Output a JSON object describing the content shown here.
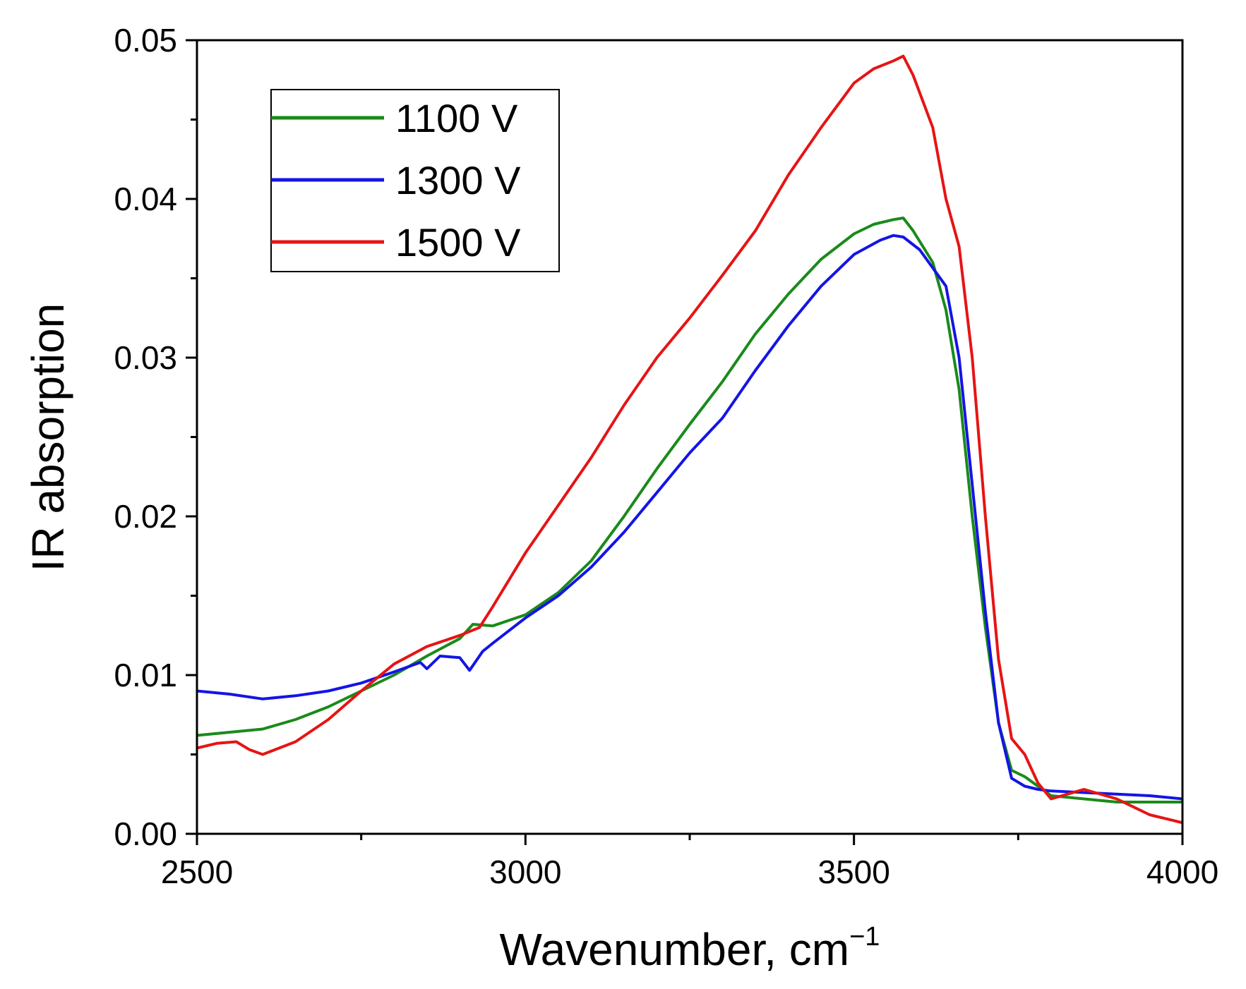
{
  "chart_data": {
    "type": "line",
    "title": "",
    "xlabel": "Wavenumber, cm",
    "xlabel_superscript": "−1",
    "ylabel": "IR absorption",
    "xlim": [
      2500,
      4000
    ],
    "ylim": [
      0.0,
      0.05
    ],
    "x_ticks": [
      2500,
      3000,
      3500,
      4000
    ],
    "x_tick_labels": [
      "2500",
      "3000",
      "3500",
      "4000"
    ],
    "y_ticks": [
      0.0,
      0.01,
      0.02,
      0.03,
      0.04,
      0.05
    ],
    "y_tick_labels": [
      "0.00",
      "0.01",
      "0.02",
      "0.03",
      "0.04",
      "0.05"
    ],
    "grid": false,
    "legend_position": "top-left",
    "series": [
      {
        "name": "1100 V",
        "color": "#1a8a1a",
        "x": [
          2500,
          2550,
          2600,
          2650,
          2700,
          2750,
          2800,
          2850,
          2900,
          2920,
          2950,
          3000,
          3050,
          3100,
          3150,
          3200,
          3250,
          3300,
          3350,
          3400,
          3450,
          3500,
          3530,
          3560,
          3575,
          3590,
          3620,
          3640,
          3660,
          3680,
          3700,
          3720,
          3740,
          3760,
          3780,
          3800,
          3850,
          3900,
          3950,
          4000
        ],
        "y": [
          0.0062,
          0.0064,
          0.0066,
          0.0072,
          0.008,
          0.009,
          0.01,
          0.0112,
          0.0123,
          0.0132,
          0.0131,
          0.0138,
          0.0152,
          0.0172,
          0.02,
          0.023,
          0.0258,
          0.0285,
          0.0315,
          0.034,
          0.0362,
          0.0378,
          0.0384,
          0.0387,
          0.0388,
          0.038,
          0.036,
          0.033,
          0.028,
          0.02,
          0.013,
          0.007,
          0.004,
          0.0036,
          0.003,
          0.0024,
          0.0022,
          0.002,
          0.002,
          0.002
        ]
      },
      {
        "name": "1300 V",
        "color": "#1414e6",
        "x": [
          2500,
          2550,
          2600,
          2650,
          2700,
          2750,
          2800,
          2840,
          2850,
          2870,
          2900,
          2915,
          2935,
          2950,
          3000,
          3050,
          3100,
          3150,
          3200,
          3250,
          3300,
          3350,
          3400,
          3450,
          3500,
          3540,
          3560,
          3575,
          3600,
          3640,
          3660,
          3680,
          3700,
          3720,
          3740,
          3760,
          3780,
          3800,
          3850,
          3900,
          3950,
          4000
        ],
        "y": [
          0.009,
          0.0088,
          0.0085,
          0.0087,
          0.009,
          0.0095,
          0.0102,
          0.0108,
          0.0104,
          0.0112,
          0.0111,
          0.0103,
          0.0115,
          0.012,
          0.0136,
          0.015,
          0.0168,
          0.019,
          0.0215,
          0.024,
          0.0262,
          0.0292,
          0.032,
          0.0345,
          0.0365,
          0.0374,
          0.0377,
          0.0376,
          0.0368,
          0.0345,
          0.03,
          0.022,
          0.014,
          0.007,
          0.0035,
          0.003,
          0.0028,
          0.0027,
          0.0026,
          0.0025,
          0.0024,
          0.0022
        ]
      },
      {
        "name": "1500 V",
        "color": "#e61414",
        "x": [
          2500,
          2530,
          2560,
          2580,
          2600,
          2650,
          2700,
          2750,
          2800,
          2850,
          2900,
          2930,
          2950,
          3000,
          3050,
          3100,
          3150,
          3200,
          3250,
          3300,
          3350,
          3400,
          3450,
          3500,
          3530,
          3560,
          3575,
          3590,
          3620,
          3640,
          3660,
          3680,
          3700,
          3720,
          3740,
          3760,
          3780,
          3800,
          3850,
          3900,
          3950,
          4000
        ],
        "y": [
          0.0054,
          0.0057,
          0.0058,
          0.0053,
          0.005,
          0.0058,
          0.0072,
          0.009,
          0.0107,
          0.0118,
          0.0125,
          0.013,
          0.0143,
          0.0177,
          0.0207,
          0.0237,
          0.027,
          0.03,
          0.0325,
          0.0352,
          0.038,
          0.0415,
          0.0445,
          0.0473,
          0.0482,
          0.0487,
          0.049,
          0.0478,
          0.0445,
          0.04,
          0.037,
          0.03,
          0.02,
          0.011,
          0.006,
          0.005,
          0.0032,
          0.0022,
          0.0028,
          0.0022,
          0.0012,
          0.0007
        ]
      }
    ]
  }
}
